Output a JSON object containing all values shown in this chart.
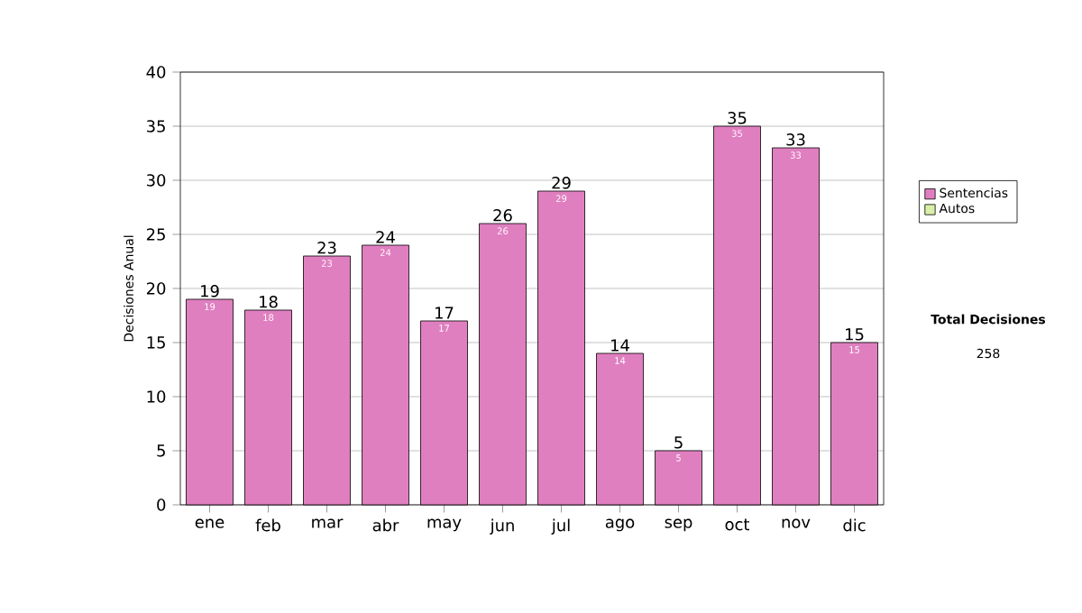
{
  "chart_data": {
    "type": "bar",
    "ylabel": "Decisiones Anual",
    "categories": [
      "ene",
      "feb",
      "mar",
      "abr",
      "may",
      "jun",
      "jul",
      "ago",
      "sep",
      "oct",
      "nov",
      "dic"
    ],
    "series": [
      {
        "name": "Sentencias",
        "color": "#e07fc0",
        "values": [
          19,
          18,
          23,
          24,
          17,
          26,
          29,
          14,
          5,
          35,
          33,
          15
        ],
        "value_labels": [
          "19",
          "18",
          "23",
          "24",
          "17",
          "26",
          "29",
          "14",
          "5",
          "35",
          "33",
          "15"
        ]
      },
      {
        "name": "Autos",
        "color": "#d8f0a8",
        "values": [
          0,
          0,
          0,
          0,
          0,
          0,
          0,
          0,
          0,
          0,
          0,
          0
        ]
      }
    ],
    "stacked": true,
    "totals": [
      "19",
      "18",
      "23",
      "24",
      "17",
      "26",
      "29",
      "14",
      "5",
      "35",
      "33",
      "15"
    ],
    "ylim": [
      0,
      40
    ],
    "yticks": [
      0,
      5,
      10,
      15,
      20,
      25,
      30,
      35,
      40
    ],
    "grid": "y",
    "legend": "right",
    "annotations": [
      "Total Decisiones",
      "258"
    ]
  }
}
